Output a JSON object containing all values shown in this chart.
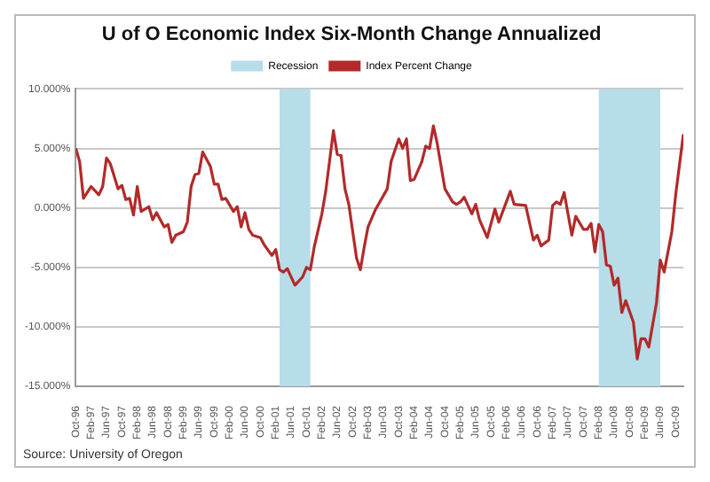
{
  "chart_data": {
    "type": "line",
    "title": "U of O Economic Index Six-Month Change Annualized",
    "xlim": [
      "1996-10",
      "2009-12"
    ],
    "xticks": [
      {
        "value": "1996-10",
        "label": "Oct-96"
      },
      {
        "value": "1997-02",
        "label": "Feb-97"
      },
      {
        "value": "1997-06",
        "label": "Jun-97"
      },
      {
        "value": "1997-10",
        "label": "Oct-97"
      },
      {
        "value": "1998-02",
        "label": "Feb-98"
      },
      {
        "value": "1998-06",
        "label": "Jun-98"
      },
      {
        "value": "1998-10",
        "label": "Oct-98"
      },
      {
        "value": "1999-02",
        "label": "Feb-99"
      },
      {
        "value": "1999-06",
        "label": "Jun-99"
      },
      {
        "value": "1999-10",
        "label": "Oct-99"
      },
      {
        "value": "2000-02",
        "label": "Feb-00"
      },
      {
        "value": "2000-06",
        "label": "Jun-00"
      },
      {
        "value": "2000-10",
        "label": "Oct-00"
      },
      {
        "value": "2001-02",
        "label": "Feb-01"
      },
      {
        "value": "2001-06",
        "label": "Jun-01"
      },
      {
        "value": "2001-10",
        "label": "Oct-01"
      },
      {
        "value": "2002-02",
        "label": "Feb-02"
      },
      {
        "value": "2002-06",
        "label": "Jun-02"
      },
      {
        "value": "2002-10",
        "label": "Oct-02"
      },
      {
        "value": "2003-02",
        "label": "Feb-03"
      },
      {
        "value": "2003-06",
        "label": "Jun-03"
      },
      {
        "value": "2003-10",
        "label": "Oct-03"
      },
      {
        "value": "2004-02",
        "label": "Feb-04"
      },
      {
        "value": "2004-06",
        "label": "Jun-04"
      },
      {
        "value": "2004-10",
        "label": "Oct-04"
      },
      {
        "value": "2005-02",
        "label": "Feb-05"
      },
      {
        "value": "2005-06",
        "label": "Jun-05"
      },
      {
        "value": "2005-10",
        "label": "Oct-05"
      },
      {
        "value": "2006-02",
        "label": "Feb-06"
      },
      {
        "value": "2006-06",
        "label": "Jun-06"
      },
      {
        "value": "2006-10",
        "label": "Oct-06"
      },
      {
        "value": "2007-02",
        "label": "Feb-07"
      },
      {
        "value": "2007-06",
        "label": "Jun-07"
      },
      {
        "value": "2007-10",
        "label": "Oct-07"
      },
      {
        "value": "2008-02",
        "label": "Feb-08"
      },
      {
        "value": "2008-06",
        "label": "Jun-08"
      },
      {
        "value": "2008-10",
        "label": "Oct-08"
      },
      {
        "value": "2009-02",
        "label": "Feb-09"
      },
      {
        "value": "2009-06",
        "label": "Jun-09"
      },
      {
        "value": "2009-10",
        "label": "Oct-09"
      }
    ],
    "ylim": [
      -15,
      10
    ],
    "yticks": [
      {
        "value": -15,
        "label": "-15.000%"
      },
      {
        "value": -10,
        "label": "-10.000%"
      },
      {
        "value": -5,
        "label": "-5.000%"
      },
      {
        "value": 0,
        "label": "0.000%"
      },
      {
        "value": 5,
        "label": "5.000%"
      },
      {
        "value": 10,
        "label": "10.000%"
      }
    ],
    "grid": "y",
    "legend": "top",
    "marker": "none",
    "line_style": "solid",
    "bands": [
      {
        "axis": "x",
        "from": "2001-03",
        "to": "2001-11",
        "label": "Recession",
        "color": "#b7dde8"
      },
      {
        "axis": "x",
        "from": "2008-02",
        "to": "2009-06",
        "color": "#b7dde8"
      }
    ],
    "series": [
      {
        "name": "Index Percent Change",
        "color": "#b22a2a",
        "x": [
          "1996-10",
          "1996-11",
          "1996-12",
          "1997-02",
          "1997-04",
          "1997-05",
          "1997-06",
          "1997-07",
          "1997-09",
          "1997-10",
          "1997-11",
          "1997-12",
          "1998-01",
          "1998-02",
          "1998-03",
          "1998-05",
          "1998-06",
          "1998-07",
          "1998-09",
          "1998-10",
          "1998-11",
          "1998-12",
          "1999-02",
          "1999-03",
          "1999-04",
          "1999-05",
          "1999-06",
          "1999-07",
          "1999-09",
          "1999-10",
          "1999-11",
          "1999-12",
          "2000-01",
          "2000-03",
          "2000-04",
          "2000-05",
          "2000-06",
          "2000-07",
          "2000-08",
          "2000-10",
          "2000-11",
          "2001-01",
          "2001-02",
          "2001-03",
          "2001-04",
          "2001-05",
          "2001-07",
          "2001-09",
          "2001-10",
          "2001-11",
          "2001-12",
          "2002-02",
          "2002-03",
          "2002-05",
          "2002-06",
          "2002-07",
          "2002-08",
          "2002-09",
          "2002-11",
          "2002-12",
          "2003-01",
          "2003-02",
          "2003-04",
          "2003-07",
          "2003-08",
          "2003-10",
          "2003-11",
          "2003-12",
          "2004-01",
          "2004-02",
          "2004-04",
          "2004-05",
          "2004-06",
          "2004-07",
          "2004-08",
          "2004-10",
          "2004-12",
          "2005-01",
          "2005-02",
          "2005-03",
          "2005-05",
          "2005-06",
          "2005-07",
          "2005-09",
          "2005-11",
          "2005-12",
          "2006-03",
          "2006-04",
          "2006-07",
          "2006-09",
          "2006-10",
          "2006-11",
          "2007-01",
          "2007-02",
          "2007-03",
          "2007-04",
          "2007-05",
          "2007-07",
          "2007-08",
          "2007-10",
          "2007-11",
          "2007-12",
          "2008-01",
          "2008-02",
          "2008-03",
          "2008-04",
          "2008-05",
          "2008-06",
          "2008-07",
          "2008-08",
          "2008-09",
          "2008-11",
          "2008-12",
          "2009-01",
          "2009-02",
          "2009-03",
          "2009-05",
          "2009-06",
          "2009-07",
          "2009-09",
          "2009-10",
          "2009-12"
        ],
        "values": [
          5.0,
          3.9,
          0.8,
          1.8,
          1.1,
          1.8,
          4.2,
          3.7,
          1.6,
          1.9,
          0.7,
          0.8,
          -0.6,
          1.8,
          -0.3,
          0.1,
          -1.0,
          -0.4,
          -1.6,
          -1.4,
          -2.9,
          -2.3,
          -2.0,
          -1.2,
          1.8,
          2.8,
          2.9,
          4.7,
          3.5,
          2.0,
          2.0,
          0.7,
          0.8,
          -0.3,
          0.1,
          -1.6,
          -0.4,
          -1.8,
          -2.3,
          -2.5,
          -3.1,
          -4.0,
          -3.5,
          -5.2,
          -5.4,
          -5.1,
          -6.5,
          -5.8,
          -5.0,
          -5.2,
          -3.3,
          -0.5,
          1.4,
          6.5,
          4.5,
          4.4,
          1.6,
          0.3,
          -4.2,
          -5.2,
          -3.3,
          -1.6,
          -0.1,
          1.6,
          3.9,
          5.8,
          5.0,
          5.8,
          2.3,
          2.4,
          3.9,
          5.2,
          5.0,
          6.9,
          5.4,
          1.6,
          0.5,
          0.3,
          0.5,
          0.9,
          -0.5,
          0.3,
          -1.0,
          -2.5,
          -0.1,
          -1.2,
          1.4,
          0.3,
          0.2,
          -2.7,
          -2.3,
          -3.2,
          -2.7,
          0.2,
          0.5,
          0.3,
          1.3,
          -2.3,
          -0.7,
          -1.8,
          -1.8,
          -1.3,
          -3.7,
          -1.4,
          -2.0,
          -4.8,
          -4.9,
          -6.5,
          -5.9,
          -8.8,
          -7.8,
          -9.6,
          -12.7,
          -11.0,
          -11.0,
          -11.7,
          -8.0,
          -4.4,
          -5.4,
          -2.0,
          1.1,
          6.2
        ]
      }
    ],
    "annotations": [
      "Source: University of Oregon"
    ]
  }
}
